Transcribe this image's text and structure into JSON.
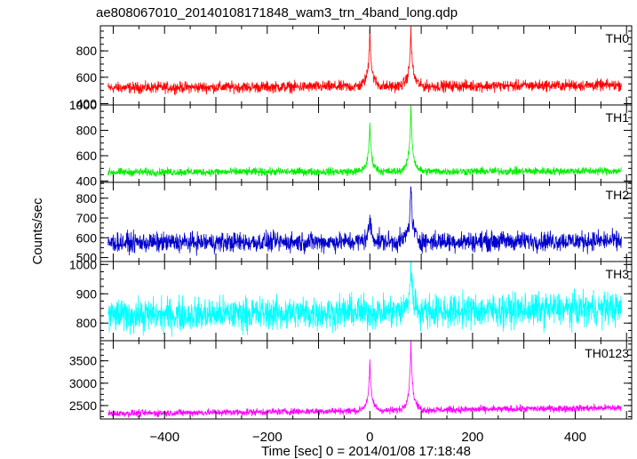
{
  "chart_data": {
    "type": "line",
    "title": "ae808067010_20140108171848_wam3_trn_4band_long.qdp",
    "xlabel": "Time [sec] 0 = 2014/01/08 17:18:48",
    "ylabel": "Counts/sec",
    "xlim": [
      -525,
      510
    ],
    "x_ticks": [
      -400,
      -200,
      0,
      200,
      400
    ],
    "x_tick_labels": [
      "−400",
      "−200",
      "0",
      "200",
      "400"
    ],
    "panels": [
      {
        "name": "TH0",
        "color": "#ff0000",
        "ylim": [
          390,
          990
        ],
        "y_ticks": [
          400,
          600,
          800
        ],
        "y_tick_labels": [
          "400",
          "600",
          "800"
        ],
        "baseline": 520,
        "baseline_end": 540,
        "noise": 30,
        "peaks": [
          {
            "x": 0,
            "value": 960
          },
          {
            "x": 80,
            "value": 960
          }
        ],
        "x_range": [
          -510,
          490
        ]
      },
      {
        "name": "TH1",
        "color": "#00ee00",
        "ylim": [
          390,
          1000
        ],
        "y_ticks": [
          400,
          600,
          800,
          1000
        ],
        "y_tick_labels": [
          "400",
          "600",
          "800",
          "1000"
        ],
        "baseline": 470,
        "baseline_end": 480,
        "noise": 22,
        "peaks": [
          {
            "x": 0,
            "value": 850
          },
          {
            "x": 80,
            "value": 990
          }
        ],
        "x_range": [
          -510,
          490
        ]
      },
      {
        "name": "TH2",
        "color": "#0000cc",
        "ylim": [
          480,
          880
        ],
        "y_ticks": [
          500,
          600,
          700,
          800
        ],
        "y_tick_labels": [
          "500",
          "600",
          "700",
          "800"
        ],
        "baseline": 575,
        "baseline_end": 585,
        "noise": 35,
        "peaks": [
          {
            "x": 0,
            "value": 700
          },
          {
            "x": 80,
            "value": 870
          }
        ],
        "x_range": [
          -510,
          490
        ]
      },
      {
        "name": "TH3",
        "color": "#00ffff",
        "ylim": [
          740,
          1010
        ],
        "y_ticks": [
          800,
          900,
          1000
        ],
        "y_tick_labels": [
          "800",
          "900",
          "1000"
        ],
        "baseline": 825,
        "baseline_end": 850,
        "noise": 40,
        "peaks": [
          {
            "x": 80,
            "value": 1000
          }
        ],
        "x_range": [
          -510,
          490
        ]
      },
      {
        "name": "TH0123",
        "color": "#ff00ff",
        "ylim": [
          2200,
          3950
        ],
        "y_ticks": [
          2500,
          3000,
          3500
        ],
        "y_tick_labels": [
          "2500",
          "3000",
          "3500"
        ],
        "baseline": 2320,
        "baseline_end": 2450,
        "noise": 55,
        "peaks": [
          {
            "x": 0,
            "value": 3400
          },
          {
            "x": 80,
            "value": 3900
          }
        ],
        "x_range": [
          -510,
          490
        ]
      }
    ]
  }
}
